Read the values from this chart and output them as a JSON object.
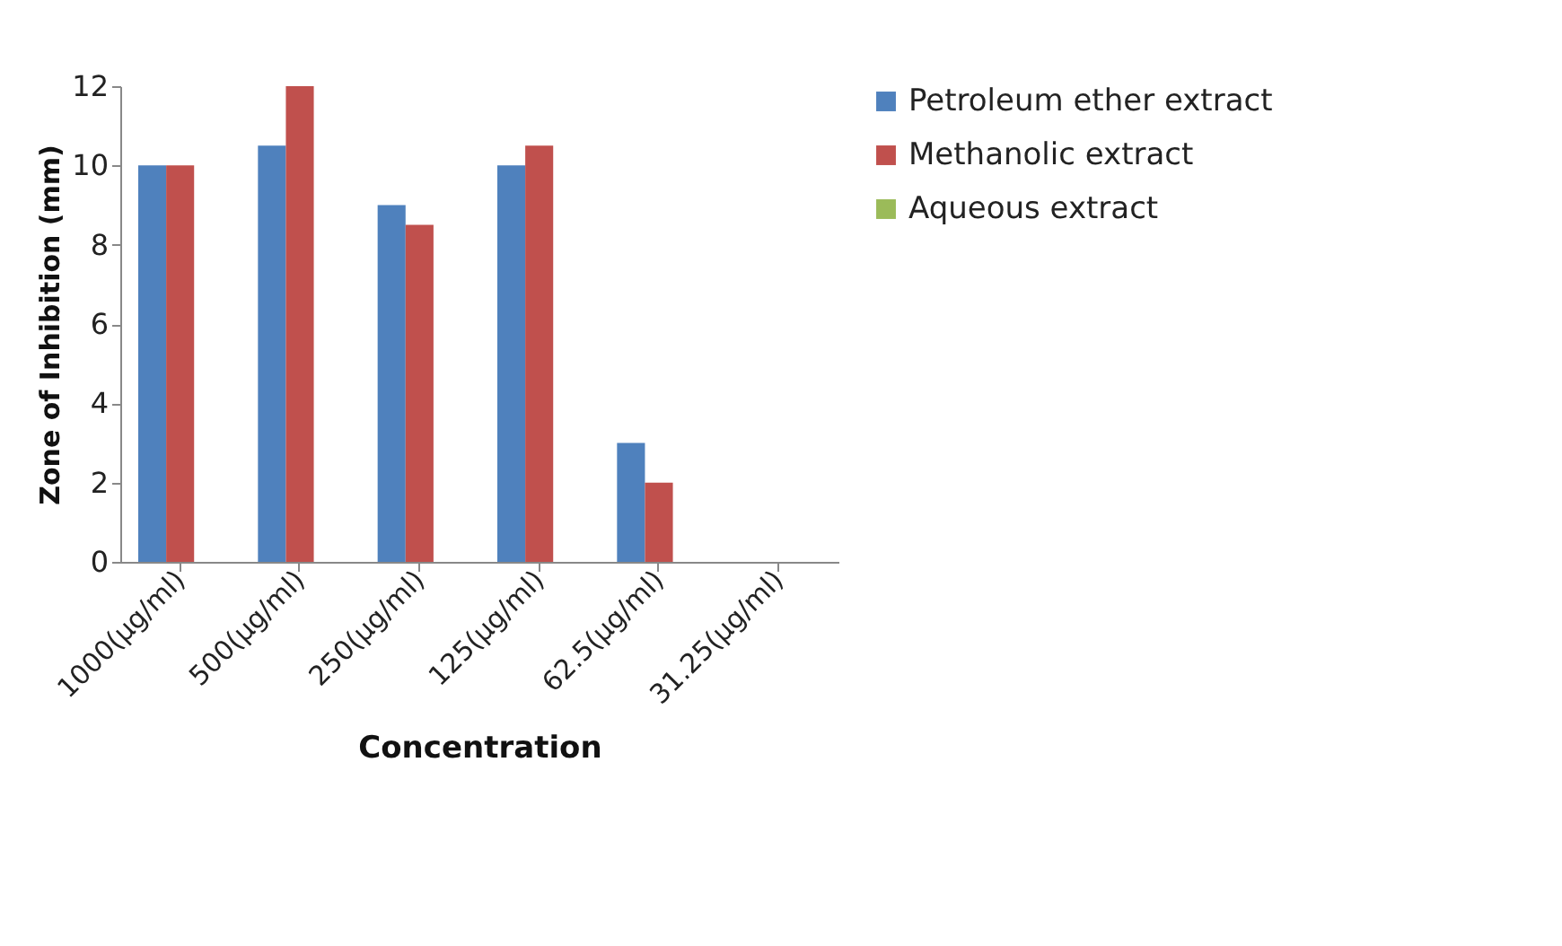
{
  "chart_data": {
    "type": "bar",
    "xlabel": "Concentration",
    "ylabel": "Zone of Inhibition (mm)",
    "categories": [
      "1000(µg/ml)",
      "500(µg/ml)",
      "250(µg/ml)",
      "125(µg/ml)",
      "62.5(µg/ml)",
      "31.25(µg/ml)"
    ],
    "series": [
      {
        "name": "Petroleum ether extract",
        "color": "#4f81bd",
        "values": [
          10,
          10.5,
          9,
          10,
          3,
          0
        ]
      },
      {
        "name": "Methanolic extract",
        "color": "#c0504d",
        "values": [
          10,
          12,
          8.5,
          10.5,
          2,
          0
        ]
      },
      {
        "name": "Aqueous extract",
        "color": "#9bbb59",
        "values": [
          0,
          0,
          0,
          0,
          0,
          0
        ]
      }
    ],
    "ylim": [
      0,
      12
    ],
    "yticks": [
      0,
      2,
      4,
      6,
      8,
      10,
      12
    ],
    "grid": false,
    "legend": "right"
  }
}
